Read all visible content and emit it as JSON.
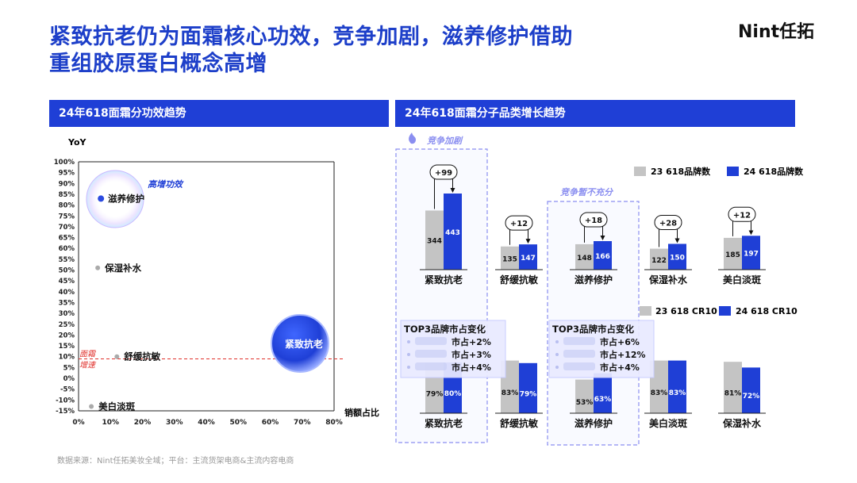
{
  "title_line1": "紧致抗老仍为面霜核心功效，竞争加剧，滋养修护借助",
  "title_line2": "重组胶原蛋白概念高增",
  "logo": "Nint任拓",
  "left_section_title": "24年618面霜分功效趋势",
  "right_section_title": "24年618面霜分子品类增长趋势",
  "source_note": "数据来源：Nint任拓美妆全域；平台：主流货架电商&主流内容电商",
  "colors": {
    "brand_blue": "#1f3fd6",
    "gray_bar": "#c4c4c4",
    "threshold_red": "#e0302b"
  },
  "scatter": {
    "y_axis_label": "YoY",
    "x_axis_label": "销额占比",
    "threshold_label_1": "面霜",
    "threshold_label_2": "增速",
    "high_growth_label": "高增功效"
  },
  "bars_top": {
    "legend_23": "23 618品牌数",
    "legend_24": "24 618品牌数",
    "annotation_competition": "竞争加剧",
    "annotation_insufficient": "竞争暂不充分"
  },
  "bars_bottom": {
    "legend_23": "23 618 CR10",
    "legend_24": "24 618 CR10",
    "share_box_title": "TOP3品牌市占变化",
    "share_box_1": [
      "市占+2%",
      "市占+3%",
      "市占+4%"
    ],
    "share_box_2": [
      "市占+6%",
      "市占+12%",
      "市占+4%"
    ]
  },
  "chart_data": [
    {
      "type": "scatter",
      "xlabel": "销额占比",
      "ylabel": "YoY",
      "xlim": [
        0,
        80
      ],
      "ylim": [
        -15,
        100
      ],
      "x_ticks": [
        "0%",
        "10%",
        "20%",
        "30%",
        "40%",
        "50%",
        "60%",
        "70%",
        "80%"
      ],
      "y_ticks": [
        "-15%",
        "-10%",
        "-5%",
        "0%",
        "5%",
        "10%",
        "15%",
        "20%",
        "25%",
        "30%",
        "35%",
        "40%",
        "45%",
        "50%",
        "55%",
        "60%",
        "65%",
        "70%",
        "75%",
        "80%",
        "85%",
        "90%",
        "95%",
        "100%"
      ],
      "threshold_y": 9,
      "points": [
        {
          "name": "滋养修护",
          "x": 7,
          "y": 83,
          "highlight": true
        },
        {
          "name": "保湿补水",
          "x": 6,
          "y": 51,
          "highlight": false
        },
        {
          "name": "舒缓抗敏",
          "x": 12,
          "y": 10,
          "highlight": false
        },
        {
          "name": "美白淡斑",
          "x": 4,
          "y": -13,
          "highlight": false
        },
        {
          "name": "紧致抗老",
          "x": 70,
          "y": 15,
          "highlight": true
        }
      ]
    },
    {
      "type": "bar",
      "categories": [
        "紧致抗老",
        "舒缓抗敏",
        "滋养修护",
        "保湿补水",
        "美白淡斑"
      ],
      "series": [
        {
          "name": "23 618品牌数",
          "values": [
            344,
            135,
            148,
            122,
            185
          ]
        },
        {
          "name": "24 618品牌数",
          "values": [
            443,
            147,
            166,
            150,
            197
          ]
        }
      ],
      "deltas": [
        "+99",
        "+12",
        "+18",
        "+28",
        "+12"
      ]
    },
    {
      "type": "bar",
      "categories": [
        "紧致抗老",
        "舒缓抗敏",
        "滋养修护",
        "美白淡斑",
        "保湿补水"
      ],
      "series": [
        {
          "name": "23 618 CR10",
          "values": [
            79,
            83,
            53,
            83,
            81
          ]
        },
        {
          "name": "24 618 CR10",
          "values": [
            80,
            79,
            63,
            83,
            72
          ]
        }
      ],
      "unit": "%"
    }
  ]
}
